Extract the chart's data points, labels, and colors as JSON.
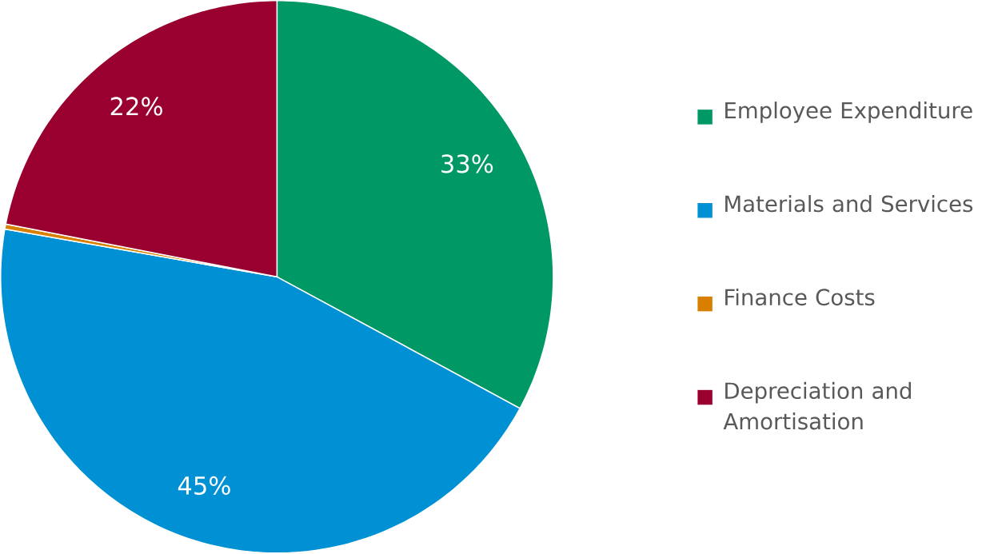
{
  "chart_data": {
    "type": "pie",
    "categories": [
      "Employee Expenditure",
      "Materials and Services",
      "Finance Costs",
      "Depreciation and Amortisation"
    ],
    "values": [
      33,
      45,
      0.3,
      22
    ],
    "colors": [
      "#009966",
      "#0090d4",
      "#d97f00",
      "#990030"
    ],
    "value_labels": [
      "33%",
      "45%",
      null,
      "22%"
    ],
    "legend": "right"
  }
}
